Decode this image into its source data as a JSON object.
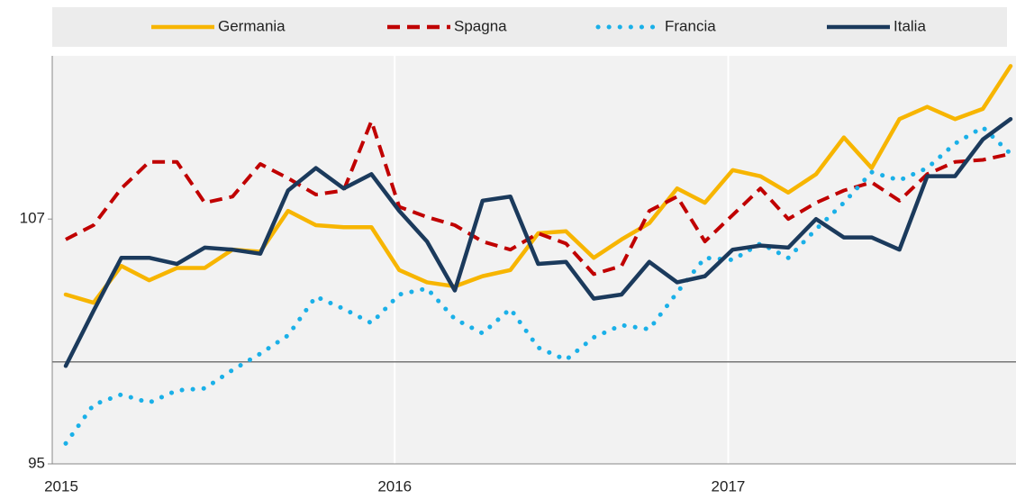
{
  "chart_data": {
    "type": "line",
    "categories": [
      "2015",
      null,
      null,
      null,
      null,
      null,
      null,
      null,
      null,
      null,
      null,
      null,
      "2016",
      null,
      null,
      null,
      null,
      null,
      null,
      null,
      null,
      null,
      null,
      null,
      "2017",
      null,
      null,
      null,
      null,
      null,
      null,
      null,
      null,
      null,
      null
    ],
    "series": [
      {
        "name": "Germania",
        "color": "#f7b500",
        "dash": "solid",
        "values": [
          103.3,
          102.9,
          104.7,
          104.0,
          104.6,
          104.6,
          105.5,
          105.4,
          107.4,
          106.7,
          106.6,
          106.6,
          104.5,
          103.9,
          103.7,
          104.2,
          104.5,
          106.3,
          106.4,
          105.1,
          106.0,
          106.8,
          108.5,
          107.8,
          109.4,
          109.1,
          108.3,
          109.2,
          111.0,
          109.5,
          111.9,
          112.5,
          111.9,
          112.4,
          114.5
        ]
      },
      {
        "name": "Spagna",
        "color": "#c00000",
        "dash": "dashed",
        "values": [
          106.0,
          106.7,
          108.5,
          109.8,
          109.8,
          107.8,
          108.1,
          109.7,
          109.0,
          108.2,
          108.4,
          111.8,
          107.6,
          107.1,
          106.7,
          105.9,
          105.5,
          106.3,
          105.8,
          104.3,
          104.7,
          107.4,
          108.1,
          105.9,
          107.2,
          108.5,
          107.0,
          107.8,
          108.4,
          108.8,
          107.9,
          109.2,
          109.8,
          109.9,
          110.2
        ]
      },
      {
        "name": "Francia",
        "color": "#1ab0e8",
        "dash": "dotted",
        "values": [
          96.0,
          97.9,
          98.4,
          98.0,
          98.6,
          98.7,
          99.6,
          100.4,
          101.3,
          103.2,
          102.6,
          101.9,
          103.3,
          103.6,
          102.1,
          101.4,
          102.6,
          100.7,
          100.1,
          101.2,
          101.8,
          101.6,
          103.4,
          105.1,
          105.0,
          105.8,
          105.1,
          106.5,
          107.8,
          109.3,
          108.9,
          109.5,
          110.7,
          111.5,
          110.2
        ]
      },
      {
        "name": "Italia",
        "color": "#1b3a5c",
        "dash": "solid",
        "values": [
          99.8,
          102.5,
          105.1,
          105.1,
          104.8,
          105.6,
          105.5,
          105.3,
          108.4,
          109.5,
          108.5,
          109.2,
          107.4,
          105.9,
          103.5,
          107.9,
          108.1,
          104.8,
          104.9,
          103.1,
          103.3,
          104.9,
          103.9,
          104.2,
          105.5,
          105.7,
          105.6,
          107.0,
          106.1,
          106.1,
          105.5,
          109.1,
          109.1,
          110.9,
          111.9
        ]
      }
    ],
    "ylim": [
      95,
      115
    ],
    "yticks": [
      95,
      107
    ],
    "reference_line": 100,
    "legend": "top"
  }
}
